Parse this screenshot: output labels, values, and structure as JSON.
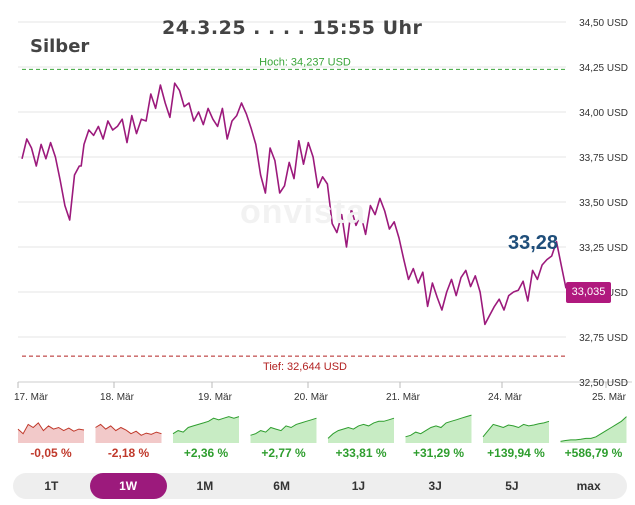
{
  "header": {
    "timestamp": "24.3.25 . . . . 15:55 Uhr",
    "instrument": "Silber",
    "watermark": "onvista"
  },
  "chart_data": {
    "type": "line",
    "title": "Silber",
    "unit": "USD",
    "ylim": [
      32.5,
      34.5
    ],
    "y_ticks": [
      {
        "value": 34.5,
        "label": "34,50 USD"
      },
      {
        "value": 34.25,
        "label": "34,25 USD"
      },
      {
        "value": 34.0,
        "label": "34,00 USD"
      },
      {
        "value": 33.75,
        "label": "33,75 USD"
      },
      {
        "value": 33.5,
        "label": "33,50 USD"
      },
      {
        "value": 33.25,
        "label": "33,25 USD"
      },
      {
        "value": 33.0,
        "label": "33,00 USD"
      },
      {
        "value": 32.75,
        "label": "32,75 USD"
      },
      {
        "value": 32.5,
        "label": "32,50 USD"
      }
    ],
    "x_ticks": [
      {
        "value": 0,
        "label": "17. Mär"
      },
      {
        "value": 1,
        "label": "18. Mär"
      },
      {
        "value": 2,
        "label": "19. Mär"
      },
      {
        "value": 3,
        "label": "20. Mär"
      },
      {
        "value": 4,
        "label": "21. Mär"
      },
      {
        "value": 5,
        "label": "24. Mär"
      },
      {
        "value": 6,
        "label": "25. Mär"
      }
    ],
    "xlim": [
      0,
      6
    ],
    "high": {
      "value": 34.237,
      "label": "Hoch: 34,237 USD"
    },
    "low": {
      "value": 32.644,
      "label": "Tief: 32,644 USD"
    },
    "current_label": "33,28",
    "last_value": 33.035,
    "last_label": "33,035",
    "series": [
      {
        "x": [
          0.0,
          0.05,
          0.1,
          0.15,
          0.2,
          0.25,
          0.3,
          0.35,
          0.4,
          0.45,
          0.5,
          0.55,
          0.6,
          0.62,
          0.65,
          0.7,
          0.75,
          0.8,
          0.85,
          0.9,
          0.95,
          1.0,
          1.05,
          1.1,
          1.15,
          1.2,
          1.25,
          1.3,
          1.35,
          1.4,
          1.45,
          1.5,
          1.55,
          1.6,
          1.65,
          1.7,
          1.75,
          1.8,
          1.85,
          1.9,
          1.95,
          2.0,
          2.05,
          2.1,
          2.15,
          2.2,
          2.25,
          2.3,
          2.35,
          2.4,
          2.45,
          2.5,
          2.55,
          2.6,
          2.65,
          2.7,
          2.75,
          2.8,
          2.85,
          2.9,
          2.95,
          3.0,
          3.05,
          3.1,
          3.15,
          3.2,
          3.25,
          3.3,
          3.35,
          3.4,
          3.45,
          3.5,
          3.55,
          3.6,
          3.65,
          3.7,
          3.75,
          3.8,
          3.85,
          3.9,
          3.95,
          4.0,
          4.05,
          4.1,
          4.15,
          4.2,
          4.25,
          4.3,
          4.35,
          4.4,
          4.45,
          4.5,
          4.55,
          4.6,
          4.65,
          4.7,
          4.75,
          4.8,
          4.85,
          4.9,
          4.95,
          5.0,
          5.05,
          5.1,
          5.15,
          5.2,
          5.25,
          5.3,
          5.35,
          5.4,
          5.45,
          5.5,
          5.55,
          5.6,
          5.65,
          5.7
        ],
        "values": [
          33.74,
          33.85,
          33.8,
          33.7,
          33.82,
          33.74,
          33.83,
          33.75,
          33.62,
          33.48,
          33.4,
          33.65,
          33.7,
          33.7,
          33.82,
          33.9,
          33.87,
          33.92,
          33.85,
          33.95,
          33.9,
          33.92,
          33.96,
          33.83,
          33.98,
          33.88,
          33.96,
          33.95,
          34.1,
          34.02,
          34.15,
          34.05,
          33.97,
          34.16,
          34.12,
          34.03,
          34.05,
          33.95,
          34.0,
          33.93,
          34.02,
          33.96,
          33.92,
          34.02,
          33.85,
          33.95,
          33.98,
          34.05,
          33.99,
          33.91,
          33.82,
          33.65,
          33.55,
          33.8,
          33.73,
          33.55,
          33.59,
          33.72,
          33.63,
          33.84,
          33.71,
          33.83,
          33.75,
          33.58,
          33.64,
          33.6,
          33.38,
          33.33,
          33.43,
          33.25,
          33.46,
          33.37,
          33.43,
          33.32,
          33.48,
          33.43,
          33.52,
          33.45,
          33.35,
          33.39,
          33.3,
          33.18,
          33.07,
          33.13,
          33.05,
          33.11,
          32.92,
          33.05,
          32.97,
          32.9,
          33.0,
          33.07,
          32.98,
          33.08,
          33.12,
          33.03,
          33.09,
          33.0,
          32.82,
          32.87,
          32.92,
          32.96,
          32.9,
          32.98,
          33.0,
          33.01,
          33.06,
          32.95,
          33.12,
          33.07,
          33.15,
          33.18,
          33.2,
          33.28,
          33.15,
          33.02
        ]
      }
    ]
  },
  "performance": [
    {
      "label": "-0,05 %",
      "positive": false
    },
    {
      "label": "-2,18 %",
      "positive": false
    },
    {
      "label": "+2,36 %",
      "positive": true
    },
    {
      "label": "+2,77 %",
      "positive": true
    },
    {
      "label": "+33,81 %",
      "positive": true
    },
    {
      "label": "+31,29 %",
      "positive": true
    },
    {
      "label": "+139,94 %",
      "positive": true
    },
    {
      "label": "+586,79 %",
      "positive": true
    }
  ],
  "periods": [
    "1T",
    "1W",
    "1M",
    "6M",
    "1J",
    "3J",
    "5J",
    "max"
  ],
  "active_period": "1W",
  "colors": {
    "line": "#9c1a7c",
    "badge": "#b0197e",
    "current": "#1f4e7a",
    "high": "#3aa53a",
    "low": "#b22222",
    "up": "#2f9e2f",
    "up_fill": "#c8ecc4",
    "down": "#c0392b",
    "down_fill": "#f2c9c9",
    "grid": "#e6e6e6"
  }
}
